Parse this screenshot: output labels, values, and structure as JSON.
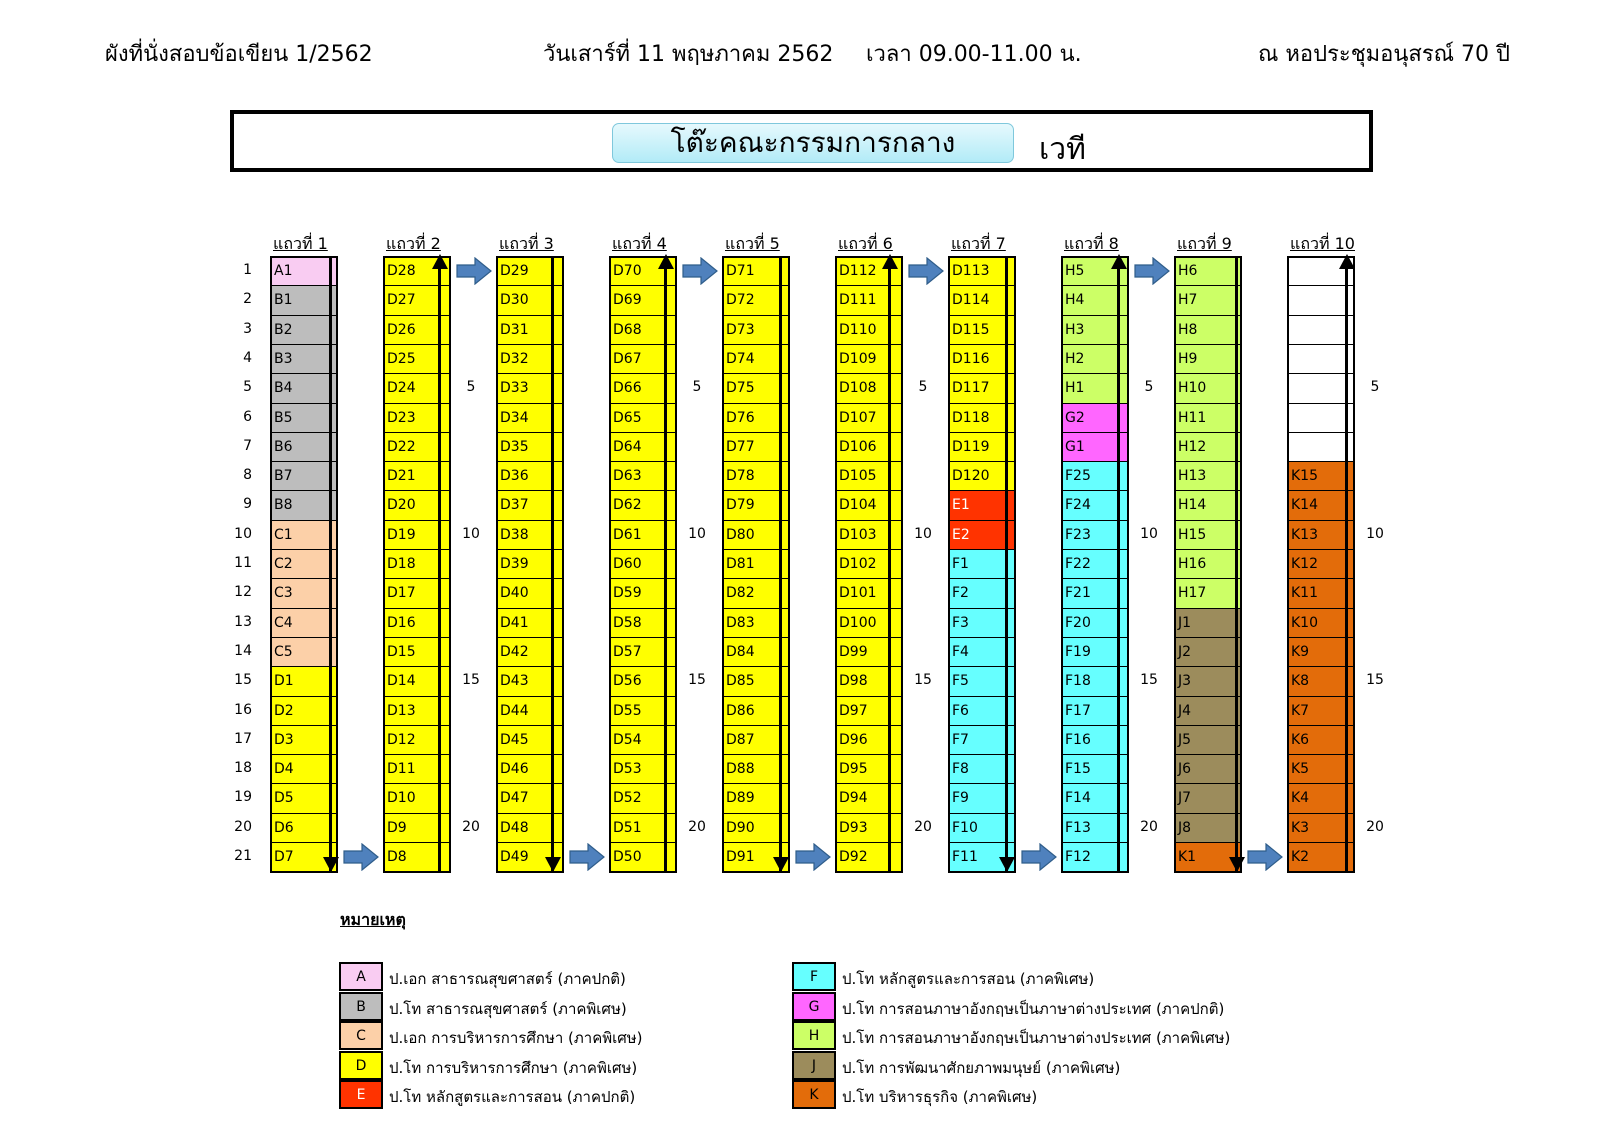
{
  "header": {
    "left": "ผังที่นั่งสอบข้อเขียน 1/2562",
    "date": "วันเสาร์ที่ 11 พฤษภาคม 2562",
    "time": "เวลา 09.00-11.00 น.",
    "venue": "ณ หอประชุมอนุสรณ์ 70 ปี"
  },
  "banner": {
    "committee": "โต๊ะคณะกรรมการกลาง",
    "stage": "เวที"
  },
  "colors": {
    "A": "#f9ccf2",
    "B": "#bdbdbd",
    "C": "#fcd0a8",
    "D": "#ffff00",
    "E": "#ff3300",
    "F": "#66ffff",
    "G": "#ff66ff",
    "H": "#ccff66",
    "J": "#9c8c5c",
    "K": "#e36c0a",
    "empty": "#ffffff"
  },
  "row_numbers": [
    "1",
    "2",
    "3",
    "4",
    "5",
    "6",
    "7",
    "8",
    "9",
    "10",
    "11",
    "12",
    "13",
    "14",
    "15",
    "16",
    "17",
    "18",
    "19",
    "20",
    "21"
  ],
  "between_ticks": [
    "5",
    "10",
    "15",
    "20"
  ],
  "columns": [
    {
      "label": "แถวที่  1",
      "seats": [
        "A1",
        "B1",
        "B2",
        "B3",
        "B4",
        "B5",
        "B6",
        "B7",
        "B8",
        "C1",
        "C2",
        "C3",
        "C4",
        "C5",
        "D1",
        "D2",
        "D3",
        "D4",
        "D5",
        "D6",
        "D7"
      ]
    },
    {
      "label": "แถวที่  2",
      "seats": [
        "D28",
        "D27",
        "D26",
        "D25",
        "D24",
        "D23",
        "D22",
        "D21",
        "D20",
        "D19",
        "D18",
        "D17",
        "D16",
        "D15",
        "D14",
        "D13",
        "D12",
        "D11",
        "D10",
        "D9",
        "D8"
      ]
    },
    {
      "label": "แถวที่  3",
      "seats": [
        "D29",
        "D30",
        "D31",
        "D32",
        "D33",
        "D34",
        "D35",
        "D36",
        "D37",
        "D38",
        "D39",
        "D40",
        "D41",
        "D42",
        "D43",
        "D44",
        "D45",
        "D46",
        "D47",
        "D48",
        "D49"
      ]
    },
    {
      "label": "แถวที่  4",
      "seats": [
        "D70",
        "D69",
        "D68",
        "D67",
        "D66",
        "D65",
        "D64",
        "D63",
        "D62",
        "D61",
        "D60",
        "D59",
        "D58",
        "D57",
        "D56",
        "D55",
        "D54",
        "D53",
        "D52",
        "D51",
        "D50"
      ]
    },
    {
      "label": "แถวที่  5",
      "seats": [
        "D71",
        "D72",
        "D73",
        "D74",
        "D75",
        "D76",
        "D77",
        "D78",
        "D79",
        "D80",
        "D81",
        "D82",
        "D83",
        "D84",
        "D85",
        "D86",
        "D87",
        "D88",
        "D89",
        "D90",
        "D91"
      ]
    },
    {
      "label": "แถวที่  6",
      "seats": [
        "D112",
        "D111",
        "D110",
        "D109",
        "D108",
        "D107",
        "D106",
        "D105",
        "D104",
        "D103",
        "D102",
        "D101",
        "D100",
        "D99",
        "D98",
        "D97",
        "D96",
        "D95",
        "D94",
        "D93",
        "D92"
      ]
    },
    {
      "label": "แถวที่  7",
      "seats": [
        "D113",
        "D114",
        "D115",
        "D116",
        "D117",
        "D118",
        "D119",
        "D120",
        "E1",
        "E2",
        "F1",
        "F2",
        "F3",
        "F4",
        "F5",
        "F6",
        "F7",
        "F8",
        "F9",
        "F10",
        "F11"
      ]
    },
    {
      "label": "แถวที่  8",
      "seats": [
        "H5",
        "H4",
        "H3",
        "H2",
        "H1",
        "G2",
        "G1",
        "F25",
        "F24",
        "F23",
        "F22",
        "F21",
        "F20",
        "F19",
        "F18",
        "F17",
        "F16",
        "F15",
        "F14",
        "F13",
        "F12"
      ]
    },
    {
      "label": "แถวที่  9",
      "seats": [
        "H6",
        "H7",
        "H8",
        "H9",
        "H10",
        "H11",
        "H12",
        "H13",
        "H14",
        "H15",
        "H16",
        "H17",
        "J1",
        "J2",
        "J3",
        "J4",
        "J5",
        "J6",
        "J7",
        "J8",
        "K1"
      ]
    },
    {
      "label": "แถวที่  10",
      "seats": [
        "",
        "",
        "",
        "",
        "",
        "",
        "",
        "K15",
        "K14",
        "K13",
        "K12",
        "K11",
        "K10",
        "K9",
        "K8",
        "K7",
        "K6",
        "K5",
        "K4",
        "K3",
        "K2"
      ]
    }
  ],
  "legend": {
    "title": "หมายเหตุ",
    "items": [
      {
        "code": "A",
        "text": "ป.เอก  สาธารณสุขศาสตร์ (ภาคปกติ)"
      },
      {
        "code": "B",
        "text": "ป.โท  สาธารณสุขศาสตร์ (ภาคพิเศษ)"
      },
      {
        "code": "C",
        "text": "ป.เอก  การบริหารการศึกษา (ภาคพิเศษ)"
      },
      {
        "code": "D",
        "text": "ป.โท  การบริหารการศึกษา (ภาคพิเศษ)"
      },
      {
        "code": "E",
        "text": "ป.โท  หลักสูตรและการสอน (ภาคปกติ)"
      },
      {
        "code": "F",
        "text": "ป.โท  หลักสูตรและการสอน (ภาคพิเศษ)"
      },
      {
        "code": "G",
        "text": "ป.โท  การสอนภาษาอังกฤษเป็นภาษาต่างประเทศ (ภาคปกติ)"
      },
      {
        "code": "H",
        "text": "ป.โท  การสอนภาษาอังกฤษเป็นภาษาต่างประเทศ (ภาคพิเศษ)"
      },
      {
        "code": "J",
        "text": "ป.โท  การพัฒนาศักยภาพมนุษย์ (ภาคพิเศษ)"
      },
      {
        "code": "K",
        "text": "ป.โท  บริหารธุรกิจ (ภาคพิเศษ)"
      }
    ]
  }
}
